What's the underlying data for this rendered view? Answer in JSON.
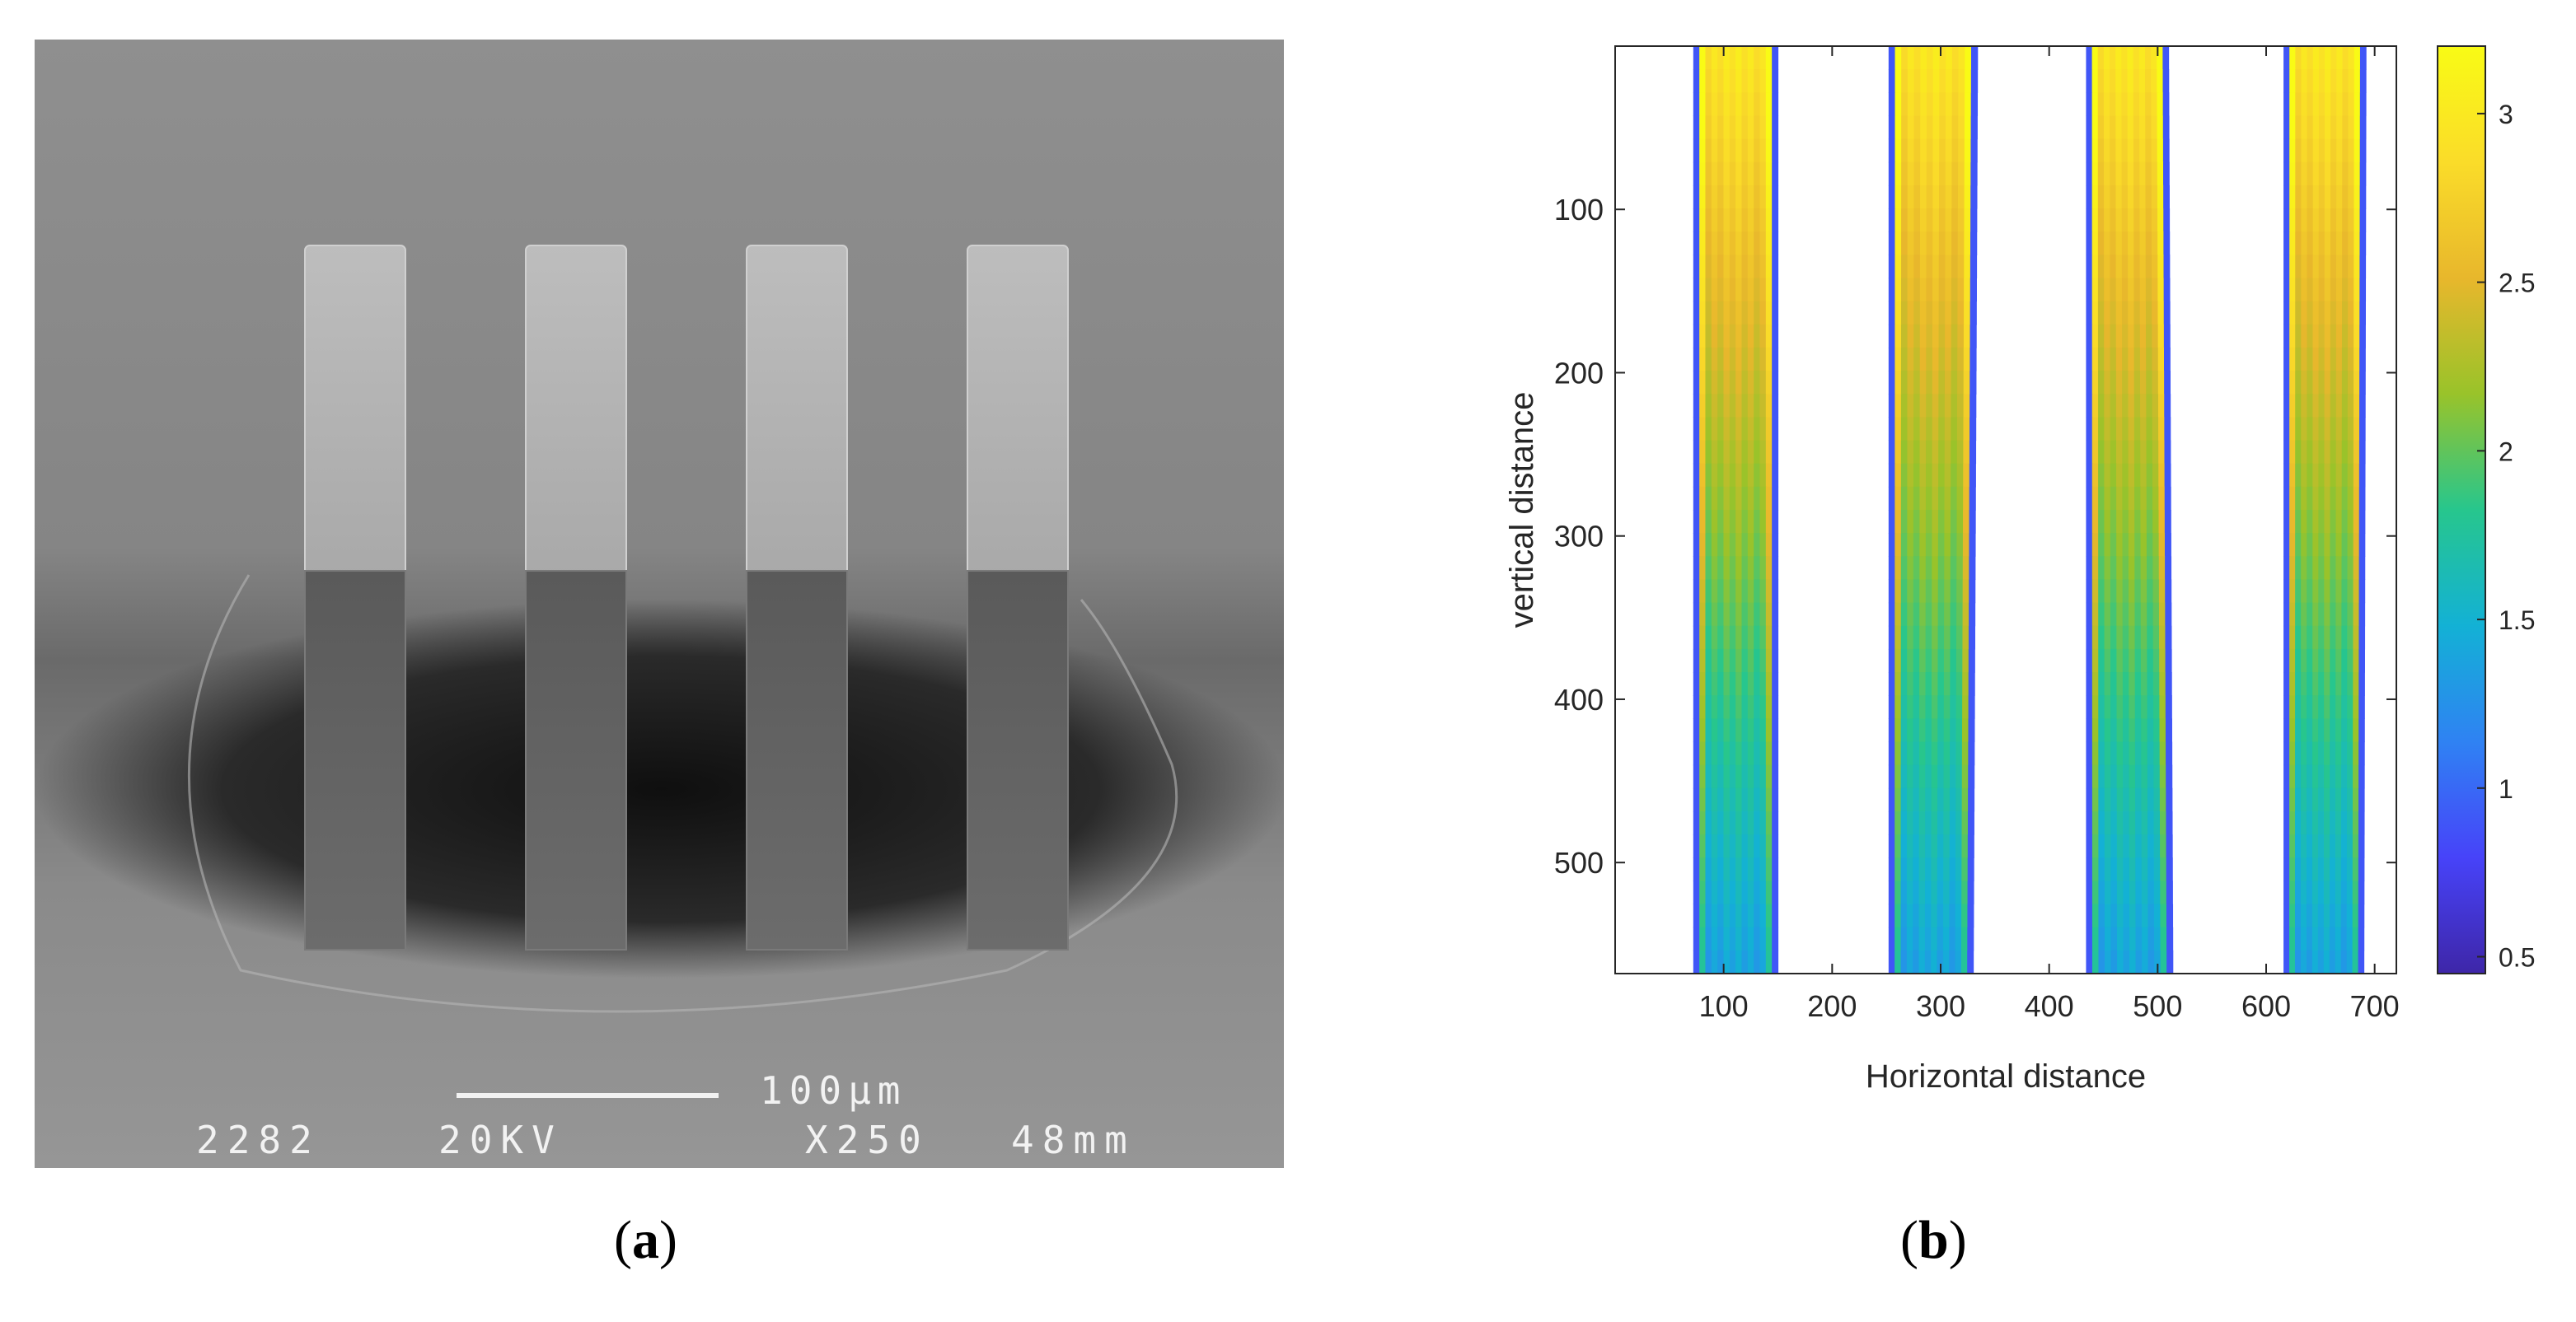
{
  "panels": {
    "left": {
      "label_open": "(",
      "label_letter": "a",
      "label_close": ")",
      "micrograph": {
        "scale_bar_label": "100µm",
        "info_id": "2282",
        "info_voltage": "20KV",
        "info_magnification": "X250",
        "info_working_distance": "48mm",
        "pillar_count": 4
      }
    },
    "right": {
      "label_open": "(",
      "label_letter": "b",
      "label_close": ")"
    }
  },
  "colors": {
    "sem_background": "#8e8e8e",
    "sem_shadow": "#1a1a1a",
    "sem_text": "#f2f2f2",
    "colormap": [
      "#3e26a8",
      "#4743f9",
      "#2f82f3",
      "#13b1d5",
      "#27c68d",
      "#99c32a",
      "#e8b72c",
      "#fadc29",
      "#f9fb15"
    ]
  },
  "chart_data": {
    "type": "heatmap",
    "plot_style": "filled contour",
    "title": "",
    "xlabel": "Horizontal distance",
    "ylabel": "vertical distance",
    "xlim": [
      0,
      720
    ],
    "ylim": [
      568,
      0
    ],
    "y_reversed": true,
    "x_ticks": [
      100,
      200,
      300,
      400,
      500,
      600,
      700
    ],
    "y_ticks": [
      100,
      200,
      300,
      400,
      500
    ],
    "colorbar": {
      "ticks": [
        0.5,
        1,
        1.5,
        2,
        2.5,
        3
      ],
      "range": [
        0.45,
        3.2
      ]
    },
    "series": [
      {
        "x_left_top": 72,
        "x_right_top": 150,
        "x_left_bottom": 72,
        "x_right_bottom": 150
      },
      {
        "x_left_top": 252,
        "x_right_top": 334,
        "x_left_bottom": 252,
        "x_right_bottom": 330
      },
      {
        "x_left_top": 434,
        "x_right_top": 510,
        "x_left_bottom": 434,
        "x_right_bottom": 514
      },
      {
        "x_left_top": 616,
        "x_right_top": 692,
        "x_left_bottom": 616,
        "x_right_bottom": 690
      }
    ],
    "value_top_center": 3.0,
    "value_bottom_center": 1.4,
    "value_edge": 0.5,
    "grid": false,
    "legend": "colorbar right"
  }
}
